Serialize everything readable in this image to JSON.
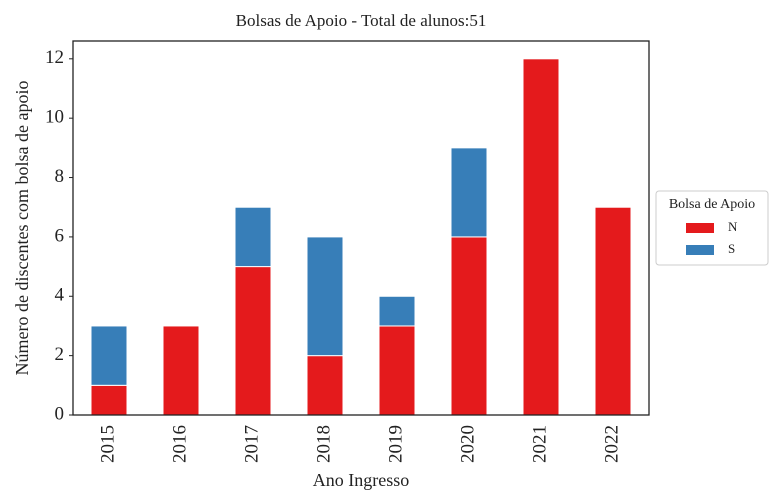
{
  "chart_data": {
    "type": "stacked_bar",
    "title": "Bolsas de Apoio - Total de alunos:51",
    "x_label": "Ano Ingresso",
    "y_label": "Número de discentes com bolsa de apoio",
    "categories": [
      "2015",
      "2016",
      "2017",
      "2018",
      "2019",
      "2020",
      "2021",
      "2022"
    ],
    "series": [
      {
        "name": "N",
        "color": "#e41a1c",
        "values": [
          1,
          3,
          5,
          2,
          3,
          6,
          12,
          7
        ]
      },
      {
        "name": "S",
        "color": "#377eb8",
        "values": [
          2,
          0,
          2,
          4,
          1,
          3,
          0,
          0
        ]
      }
    ],
    "ylim": [
      0,
      12.6
    ],
    "yticks": [
      0,
      2,
      4,
      6,
      8,
      10,
      12
    ],
    "legend_title": "Bolsa de Apoio",
    "legend_position": "right"
  }
}
